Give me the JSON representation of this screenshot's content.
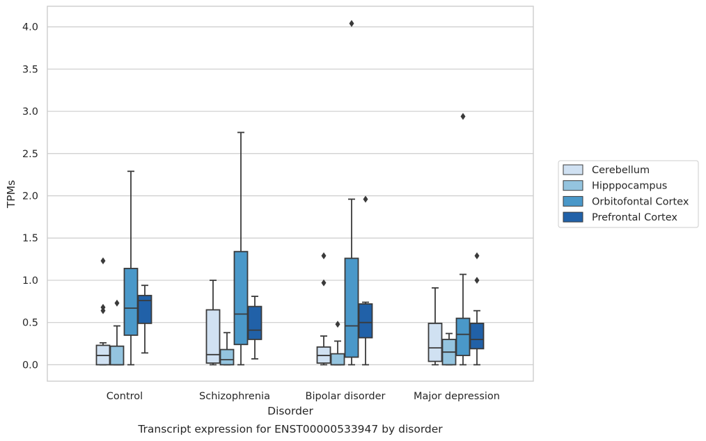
{
  "chart_data": {
    "type": "boxplot",
    "caption": "Transcript expression for ENST00000533947 by disorder",
    "xlabel": "Disorder",
    "ylabel": "TPMs",
    "ylim": [
      -0.19,
      4.25
    ],
    "yticks": [
      "0.0",
      "0.5",
      "1.0",
      "1.5",
      "2.0",
      "2.5",
      "3.0",
      "3.5",
      "4.0"
    ],
    "ytick_values": [
      0,
      0.5,
      1,
      1.5,
      2,
      2.5,
      3,
      3.5,
      4
    ],
    "grid": "horizontal",
    "legend_position": "right",
    "categories": [
      "Control",
      "Schizophrenia",
      "Bipolar disorder",
      "Major depression"
    ],
    "series": [
      {
        "name": "Cerebellum",
        "color": "#d0e1f2",
        "boxes": [
          {
            "whisker_low": 0.0,
            "q1": 0.0,
            "median": 0.11,
            "q3": 0.23,
            "whisker_high": 0.26,
            "outliers": [
              0.64,
              0.68,
              1.23
            ]
          },
          {
            "whisker_low": 0.0,
            "q1": 0.02,
            "median": 0.12,
            "q3": 0.65,
            "whisker_high": 1.0,
            "outliers": []
          },
          {
            "whisker_low": 0.0,
            "q1": 0.02,
            "median": 0.11,
            "q3": 0.21,
            "whisker_high": 0.34,
            "outliers": [
              0.97,
              1.29
            ]
          },
          {
            "whisker_low": 0.0,
            "q1": 0.04,
            "median": 0.2,
            "q3": 0.49,
            "whisker_high": 0.91,
            "outliers": []
          }
        ]
      },
      {
        "name": "Hipppocampus",
        "color": "#94c4df",
        "boxes": [
          {
            "whisker_low": 0.0,
            "q1": 0.0,
            "median": 0.0,
            "q3": 0.22,
            "whisker_high": 0.46,
            "outliers": [
              0.73
            ]
          },
          {
            "whisker_low": 0.0,
            "q1": 0.0,
            "median": 0.06,
            "q3": 0.18,
            "whisker_high": 0.38,
            "outliers": []
          },
          {
            "whisker_low": 0.0,
            "q1": 0.0,
            "median": 0.0,
            "q3": 0.13,
            "whisker_high": 0.28,
            "outliers": [
              0.48
            ]
          },
          {
            "whisker_low": 0.0,
            "q1": 0.0,
            "median": 0.15,
            "q3": 0.3,
            "whisker_high": 0.37,
            "outliers": []
          }
        ]
      },
      {
        "name": "Orbitofontal Cortex",
        "color": "#4a98c9",
        "boxes": [
          {
            "whisker_low": 0.0,
            "q1": 0.35,
            "median": 0.67,
            "q3": 1.14,
            "whisker_high": 2.29,
            "outliers": []
          },
          {
            "whisker_low": 0.0,
            "q1": 0.24,
            "median": 0.6,
            "q3": 1.34,
            "whisker_high": 2.75,
            "outliers": []
          },
          {
            "whisker_low": 0.0,
            "q1": 0.09,
            "median": 0.46,
            "q3": 1.26,
            "whisker_high": 1.96,
            "outliers": [
              4.04
            ]
          },
          {
            "whisker_low": 0.0,
            "q1": 0.11,
            "median": 0.36,
            "q3": 0.55,
            "whisker_high": 1.07,
            "outliers": [
              2.94
            ]
          }
        ]
      },
      {
        "name": "Prefrontal Cortex",
        "color": "#2161a8",
        "boxes": [
          {
            "whisker_low": 0.14,
            "q1": 0.49,
            "median": 0.76,
            "q3": 0.82,
            "whisker_high": 0.94,
            "outliers": []
          },
          {
            "whisker_low": 0.07,
            "q1": 0.3,
            "median": 0.41,
            "q3": 0.69,
            "whisker_high": 0.81,
            "outliers": []
          },
          {
            "whisker_low": 0.0,
            "q1": 0.32,
            "median": 0.5,
            "q3": 0.72,
            "whisker_high": 0.74,
            "outliers": [
              1.96
            ]
          },
          {
            "whisker_low": 0.0,
            "q1": 0.19,
            "median": 0.3,
            "q3": 0.49,
            "whisker_high": 0.64,
            "outliers": [
              1.0,
              1.29
            ]
          }
        ]
      }
    ]
  }
}
